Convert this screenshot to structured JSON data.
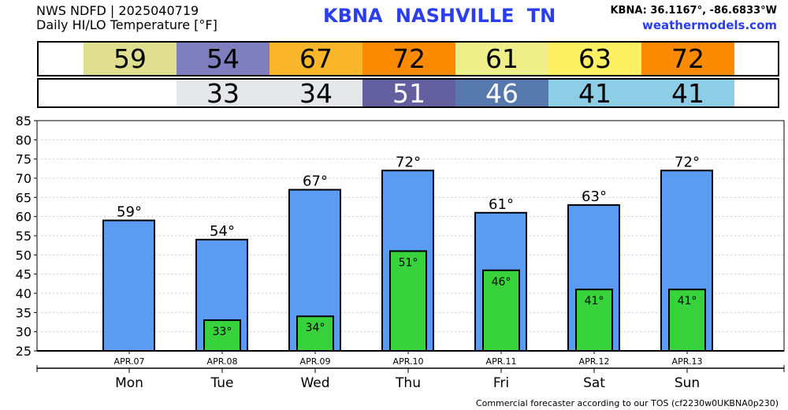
{
  "header": {
    "title_line1": "NWS NDFD | 2025040719",
    "title_line2": "Daily HI/LO Temperature [°F]",
    "station": "KBNA  NASHVILLE    TN",
    "coords": "KBNA: 36.1167°, -86.6833°W",
    "site": "weathermodels.com"
  },
  "hi_table": [
    {
      "v": "59",
      "bg": "#dfdf8f",
      "fg": "#000"
    },
    {
      "v": "54",
      "bg": "#7f7fbf",
      "fg": "#000"
    },
    {
      "v": "67",
      "bg": "#f9b62a",
      "fg": "#000"
    },
    {
      "v": "72",
      "bg": "#fb8a00",
      "fg": "#000"
    },
    {
      "v": "61",
      "bg": "#efef8a",
      "fg": "#000"
    },
    {
      "v": "63",
      "bg": "#fdf063",
      "fg": "#000"
    },
    {
      "v": "72",
      "bg": "#fb8a00",
      "fg": "#000"
    }
  ],
  "lo_table": [
    {
      "v": "33",
      "bg": "#e5e8e8",
      "fg": "#000"
    },
    {
      "v": "34",
      "bg": "#e5e8e8",
      "fg": "#000"
    },
    {
      "v": "51",
      "bg": "#64609f",
      "fg": "#fff"
    },
    {
      "v": "46",
      "bg": "#5678ad",
      "fg": "#fff"
    },
    {
      "v": "41",
      "bg": "#8ecde6",
      "fg": "#000"
    },
    {
      "v": "41",
      "bg": "#8ecde6",
      "fg": "#000"
    }
  ],
  "footer": "Commercial forecaster according to our TOS (cf2230w0UKBNA0p230)",
  "chart_data": {
    "type": "bar",
    "ylim": [
      25,
      85
    ],
    "yticks": [
      25,
      30,
      35,
      40,
      45,
      50,
      55,
      60,
      65,
      70,
      75,
      80,
      85
    ],
    "categories": [
      "APR.07",
      "APR.08",
      "APR.09",
      "APR.10",
      "APR.11",
      "APR.12",
      "APR.13"
    ],
    "days": [
      "Mon",
      "Tue",
      "Wed",
      "Thu",
      "Fri",
      "Sat",
      "Sun"
    ],
    "series": [
      {
        "name": "High",
        "color": "#5b9cf2",
        "values": [
          59,
          54,
          67,
          72,
          61,
          63,
          72
        ],
        "labels": [
          "59°",
          "54°",
          "67°",
          "72°",
          "61°",
          "63°",
          "72°"
        ]
      },
      {
        "name": "Low",
        "color": "#37d23c",
        "values": [
          null,
          33,
          34,
          51,
          46,
          41,
          41
        ],
        "labels": [
          "",
          "33°",
          "34°",
          "51°",
          "46°",
          "41°",
          "41°"
        ]
      }
    ]
  }
}
